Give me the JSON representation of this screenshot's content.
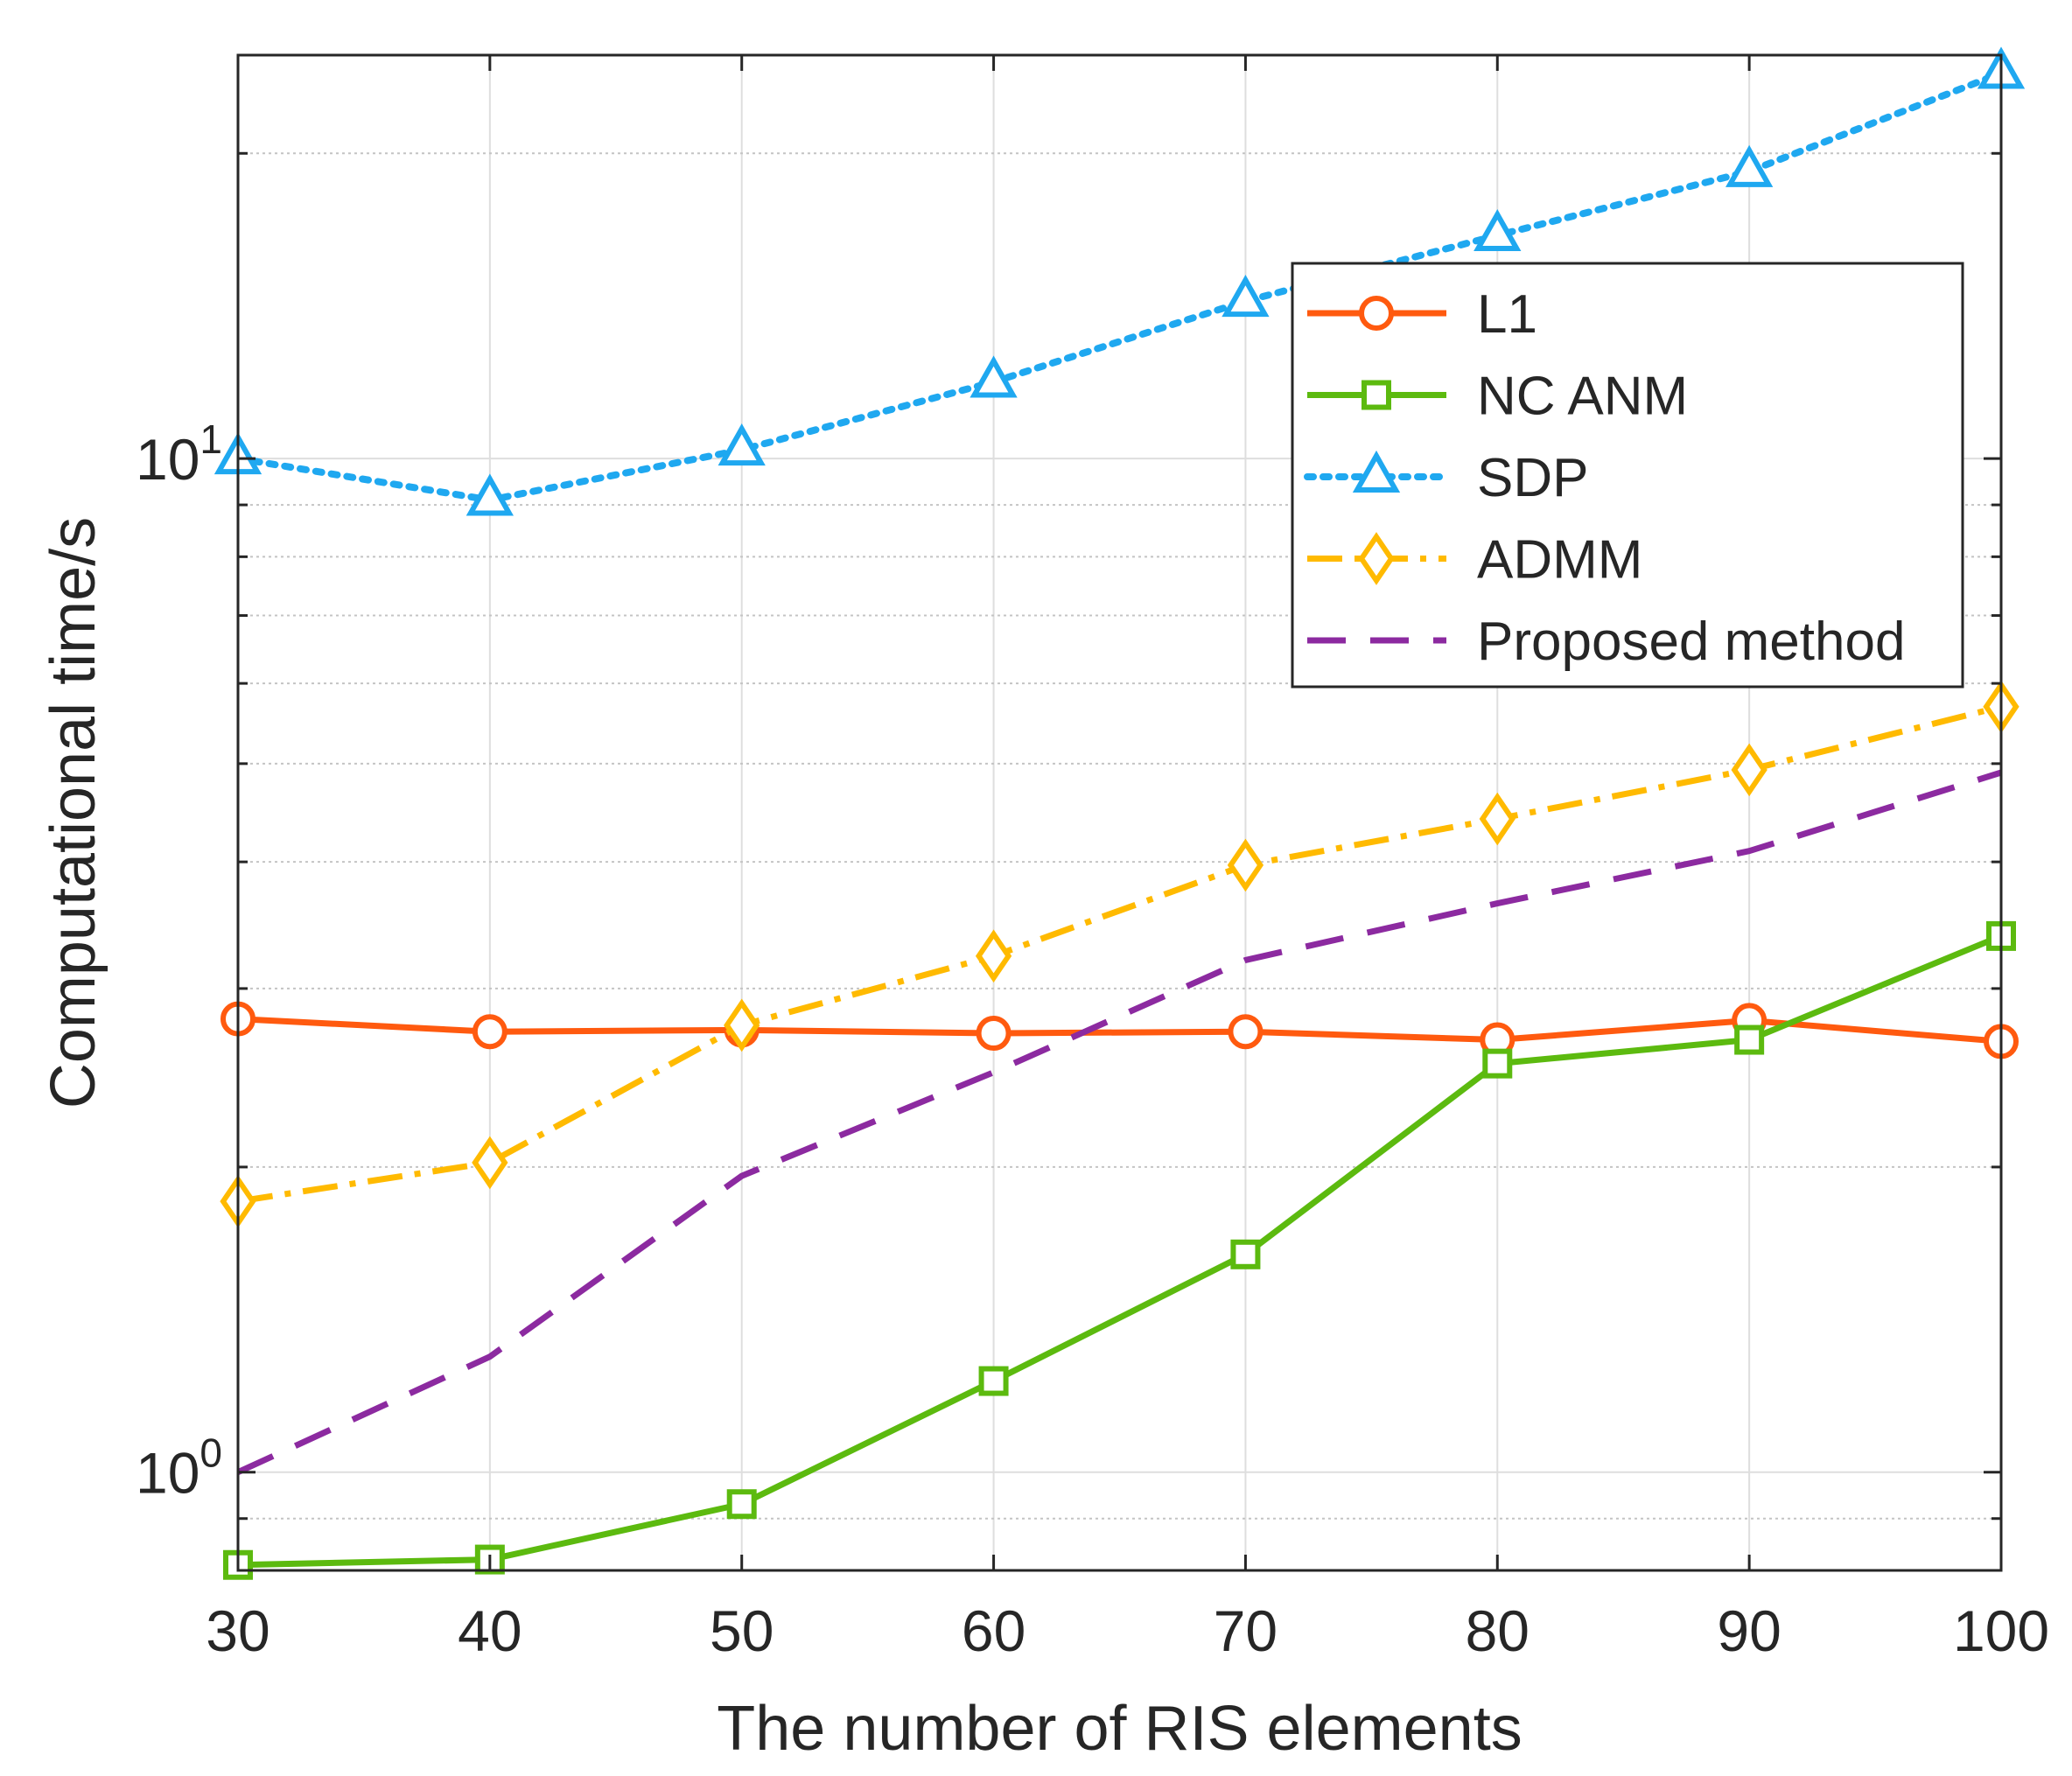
{
  "chart_data": {
    "type": "line",
    "title": "",
    "xlabel": "The number of RIS elements",
    "ylabel": "Computational time/s",
    "yscale": "log",
    "x": [
      30,
      40,
      50,
      60,
      70,
      80,
      90,
      100
    ],
    "xlim": [
      30,
      100
    ],
    "ylim": [
      0.8,
      25
    ],
    "xticks": [
      "30",
      "40",
      "50",
      "60",
      "70",
      "80",
      "90",
      "100"
    ],
    "yticks": [
      {
        "value": 1,
        "base": "10",
        "exp": "0"
      },
      {
        "value": 10,
        "base": "10",
        "exp": "1"
      }
    ],
    "grid": true,
    "legend_position": "top-right",
    "series": [
      {
        "name": "L1",
        "color": "#ff5a0f",
        "marker": "circle",
        "dash": "solid",
        "values": [
          2.8,
          2.72,
          2.73,
          2.71,
          2.72,
          2.67,
          2.79,
          2.66
        ]
      },
      {
        "name": "NC ANM",
        "color": "#5cba0f",
        "marker": "square",
        "dash": "solid",
        "values": [
          0.81,
          0.82,
          0.93,
          1.23,
          1.64,
          2.53,
          2.67,
          3.38
        ]
      },
      {
        "name": "SDP",
        "color": "#1fa8f0",
        "marker": "triangle",
        "dash": "dotted",
        "values": [
          10.0,
          9.1,
          10.2,
          11.9,
          14.3,
          16.6,
          19.2,
          24.0
        ]
      },
      {
        "name": "ADMM",
        "color": "#ffba00",
        "marker": "diamond",
        "dash": "dashdot",
        "values": [
          1.85,
          2.02,
          2.76,
          3.23,
          3.97,
          4.41,
          4.93,
          5.69
        ]
      },
      {
        "name": "Proposed method",
        "color": "#8c2aa0",
        "marker": "none",
        "dash": "dashed",
        "values": [
          1.0,
          1.3,
          1.96,
          2.48,
          3.2,
          3.64,
          4.1,
          4.9
        ]
      }
    ]
  }
}
